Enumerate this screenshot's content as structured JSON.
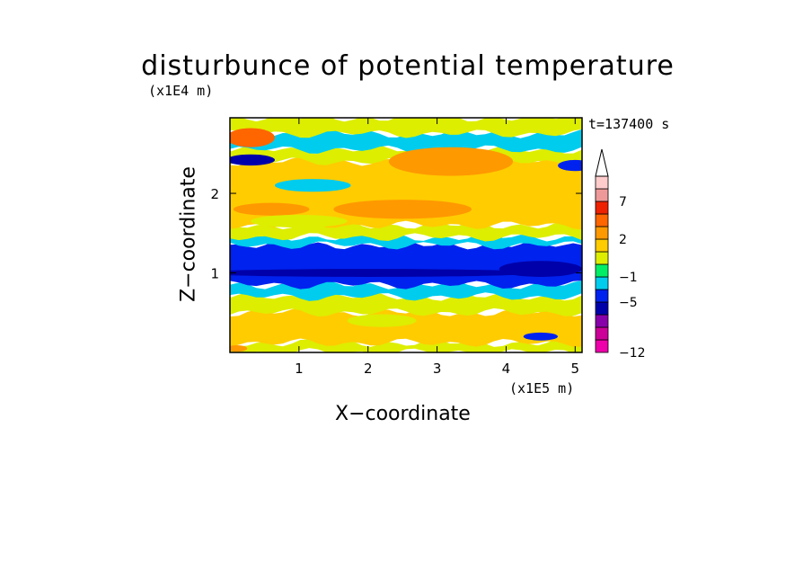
{
  "chart_data": {
    "type": "heatmap",
    "title": "disturbunce of potential temperature",
    "xlabel": "X−coordinate",
    "ylabel": "Z−coordinate",
    "x_unit": "(x1E5 m)",
    "y_unit": "(x1E4 m)",
    "time_label": "t=137400 s",
    "xlim": [
      0,
      5.1
    ],
    "ylim": [
      0,
      2.95
    ],
    "x_ticks": [
      1,
      2,
      3,
      4,
      5
    ],
    "y_ticks": [
      1,
      2
    ],
    "colorbar": {
      "tick_labels": [
        {
          "value": 7,
          "label": "7"
        },
        {
          "value": 2,
          "label": "2"
        },
        {
          "value": -1,
          "label": "−1"
        },
        {
          "value": -5,
          "label": "−5"
        },
        {
          "value": -12,
          "label": "−12"
        }
      ],
      "levels": [
        -12,
        -10,
        -8,
        -6,
        -5,
        -3,
        -1,
        0,
        1,
        2,
        3,
        5,
        7,
        9,
        11
      ],
      "colors": [
        "#ee00aa",
        "#cc0099",
        "#8800aa",
        "#0000aa",
        "#0022ee",
        "#00ccee",
        "#00ee66",
        "#ddee00",
        "#ffcc00",
        "#ff9900",
        "#ff6600",
        "#ee2200",
        "#ee9999",
        "#ffcccc"
      ],
      "extend": "max"
    },
    "bands": [
      {
        "z_from": 0.0,
        "z_to": 0.12,
        "value": 0.5
      },
      {
        "z_from": 0.12,
        "z_to": 0.5,
        "value": 1.6
      },
      {
        "z_from": 0.5,
        "z_to": 0.7,
        "value": 0.5
      },
      {
        "z_from": 0.7,
        "z_to": 0.85,
        "value": -1.5
      },
      {
        "z_from": 0.85,
        "z_to": 1.35,
        "value": -4.0
      },
      {
        "z_from": 1.35,
        "z_to": 1.45,
        "value": -2.0
      },
      {
        "z_from": 1.45,
        "z_to": 1.6,
        "value": 0.5
      },
      {
        "z_from": 1.6,
        "z_to": 2.4,
        "value": 1.8
      },
      {
        "z_from": 2.4,
        "z_to": 2.55,
        "value": 0.5
      },
      {
        "z_from": 2.55,
        "z_to": 2.75,
        "value": -1.5
      },
      {
        "z_from": 2.75,
        "z_to": 2.95,
        "value": 0.5
      }
    ],
    "features": [
      {
        "x": 0.3,
        "z": 2.7,
        "rx": 0.35,
        "rz": 0.12,
        "value": 3.5
      },
      {
        "x": 0.3,
        "z": 2.42,
        "rx": 0.35,
        "rz": 0.07,
        "value": -5.5
      },
      {
        "x": 5.0,
        "z": 2.35,
        "rx": 0.25,
        "rz": 0.07,
        "value": -4.0
      },
      {
        "x": 1.2,
        "z": 2.1,
        "rx": 0.55,
        "rz": 0.08,
        "value": -1.5
      },
      {
        "x": 3.2,
        "z": 2.4,
        "rx": 0.9,
        "rz": 0.18,
        "value": 2.5
      },
      {
        "x": 2.5,
        "z": 1.8,
        "rx": 1.0,
        "rz": 0.12,
        "value": 2.5
      },
      {
        "x": 0.6,
        "z": 1.8,
        "rx": 0.55,
        "rz": 0.08,
        "value": 2.5
      },
      {
        "x": 1.0,
        "z": 1.65,
        "rx": 0.7,
        "rz": 0.08,
        "value": 0.5
      },
      {
        "x": 2.0,
        "z": 1.0,
        "rx": 2.5,
        "rz": 0.05,
        "value": -5.5
      },
      {
        "x": 4.5,
        "z": 1.05,
        "rx": 0.6,
        "rz": 0.1,
        "value": -5.5
      },
      {
        "x": 4.5,
        "z": 0.2,
        "rx": 0.25,
        "rz": 0.05,
        "value": -4.0
      },
      {
        "x": 2.2,
        "z": 0.4,
        "rx": 0.5,
        "rz": 0.08,
        "value": 0.5
      },
      {
        "x": 0.1,
        "z": 0.05,
        "rx": 0.15,
        "rz": 0.04,
        "value": 2.5
      }
    ]
  }
}
